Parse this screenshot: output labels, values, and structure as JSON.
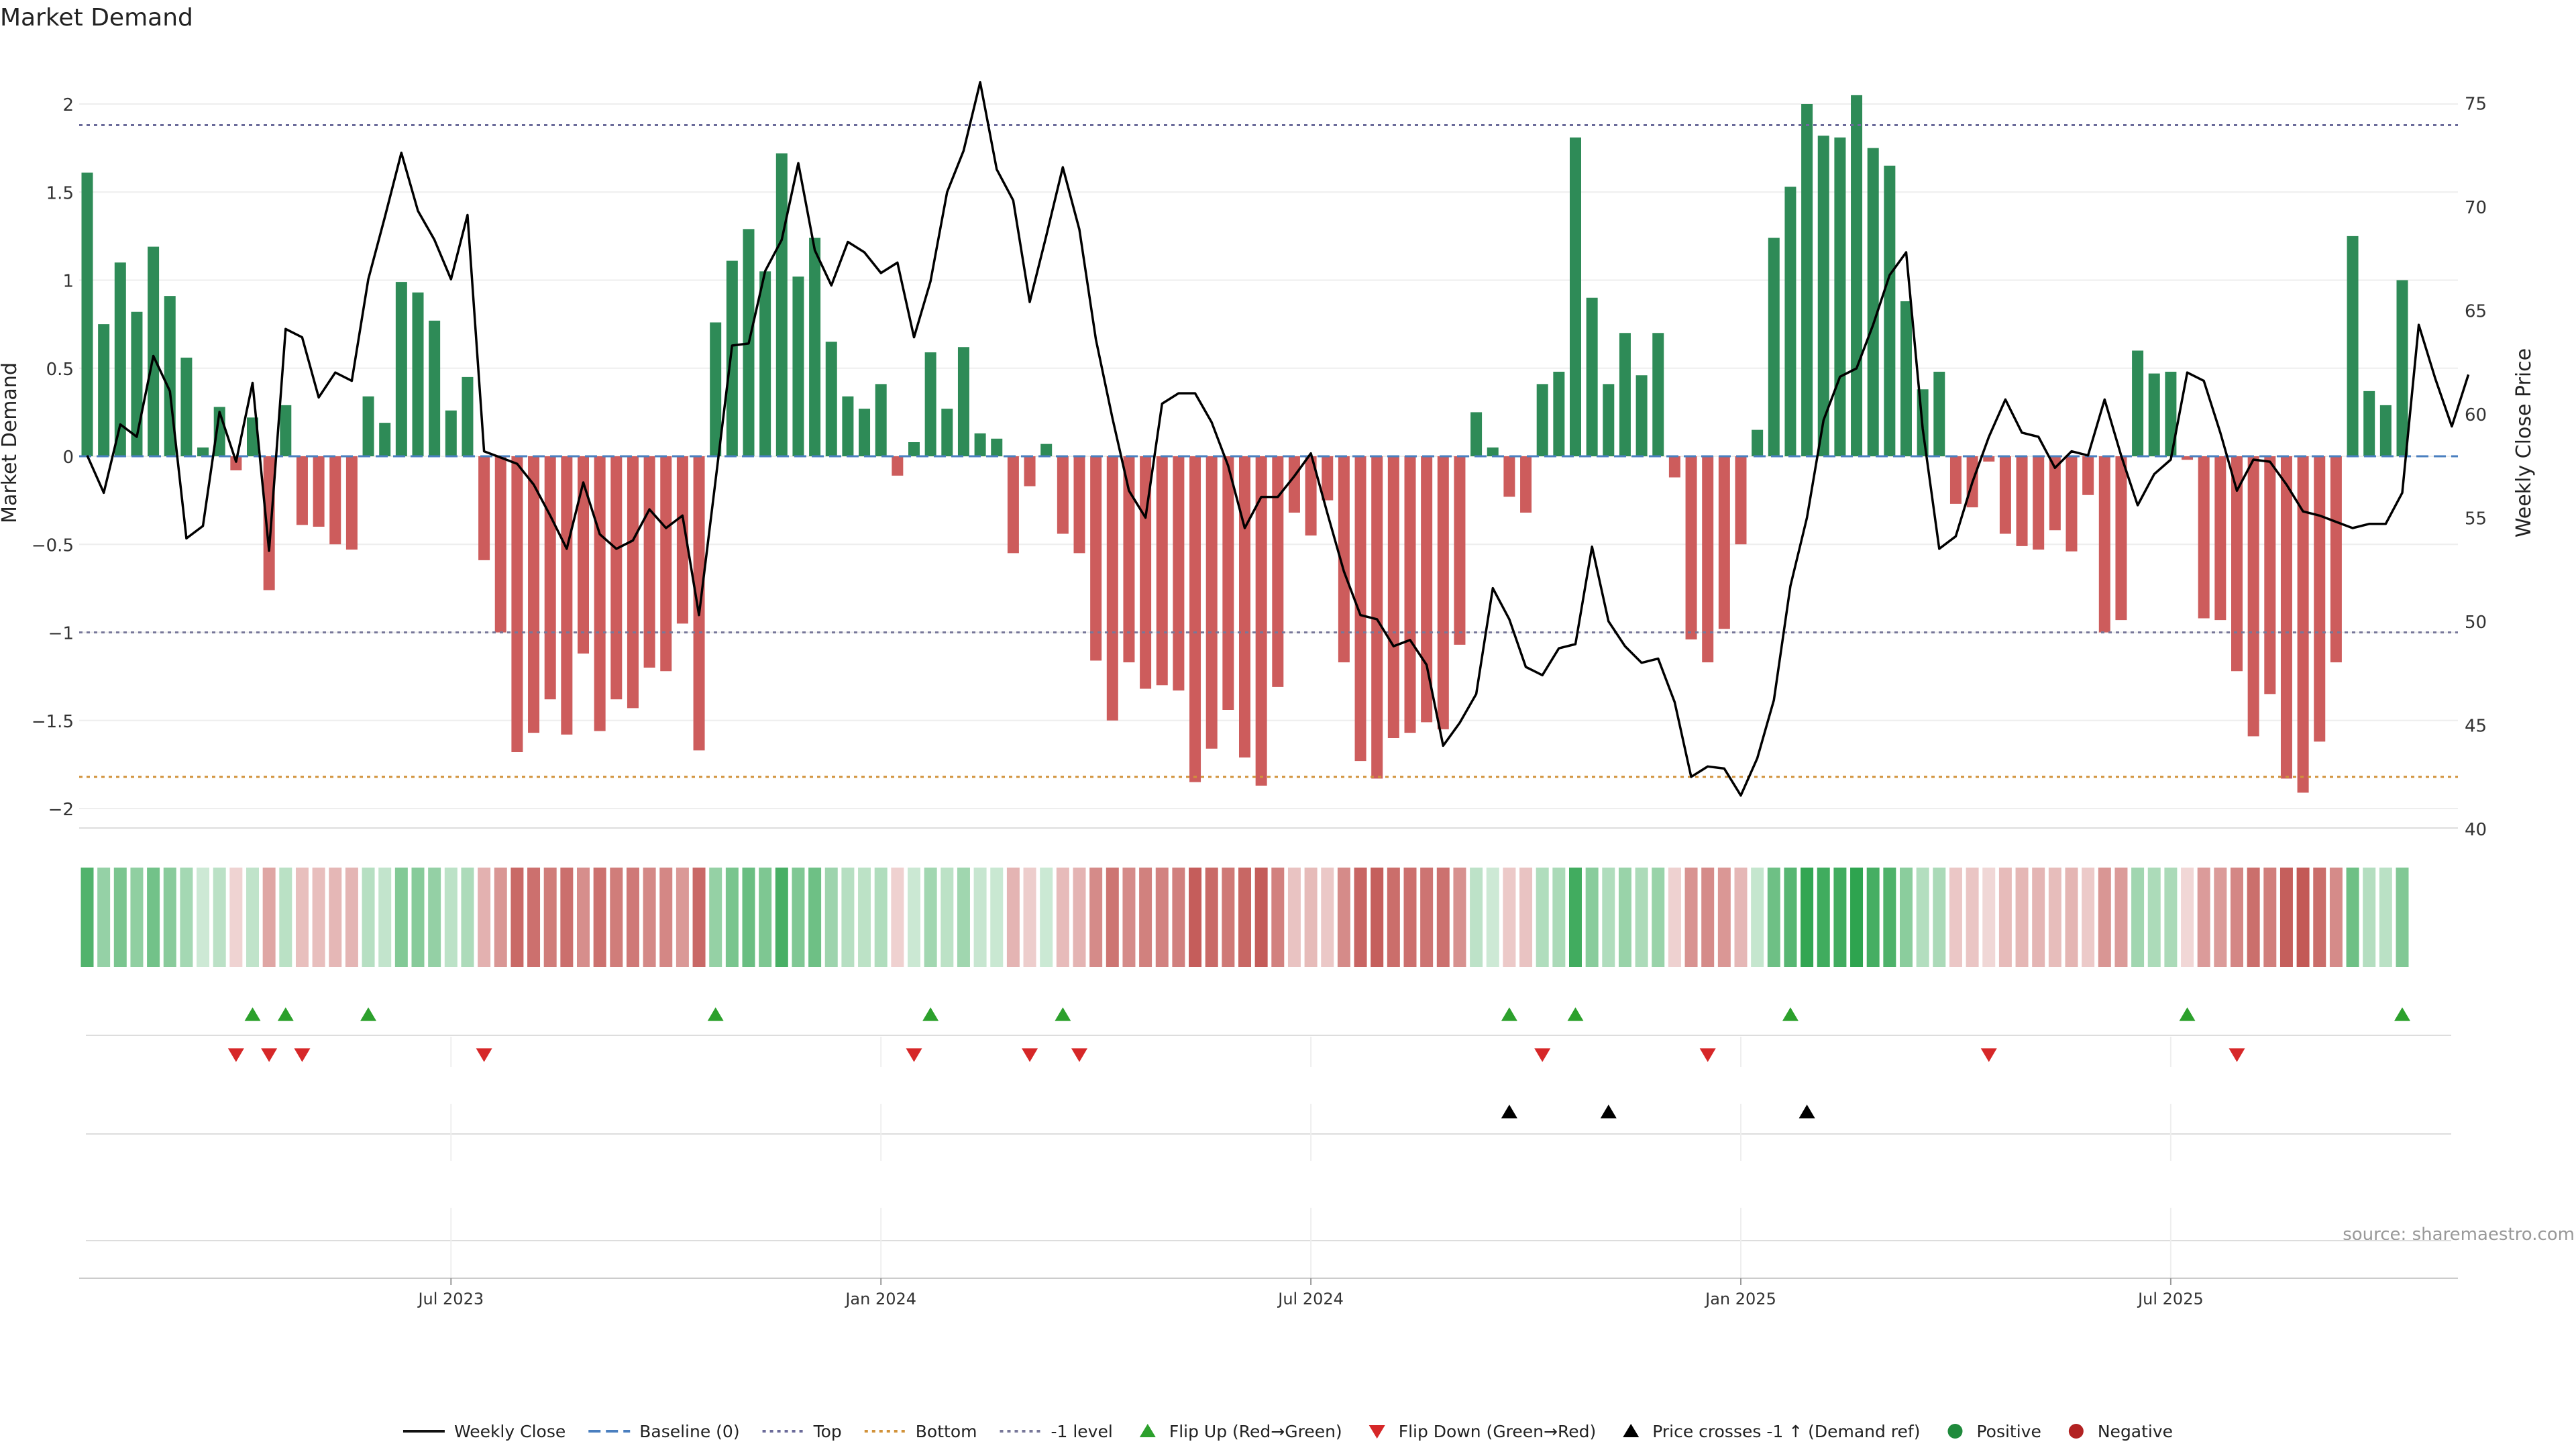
{
  "chart_data": {
    "type": "bar",
    "title": "Market Demand",
    "ylabel": "Market Demand",
    "y2label": "Weekly Close Price",
    "ylim": [
      -2.1,
      2.3
    ],
    "y2lim": [
      40,
      76
    ],
    "yticks": [
      {
        "v": 2,
        "label": "2"
      },
      {
        "v": 1.5,
        "label": "1.5"
      },
      {
        "v": 1,
        "label": "1"
      },
      {
        "v": 0.5,
        "label": "0.5"
      },
      {
        "v": 0,
        "label": "0"
      },
      {
        "v": -0.5,
        "label": "−0.5"
      },
      {
        "v": -1,
        "label": "−1"
      },
      {
        "v": -1.5,
        "label": "−1.5"
      },
      {
        "v": -2,
        "label": "−2"
      }
    ],
    "y2ticks": [
      {
        "v": 75,
        "label": "75"
      },
      {
        "v": 70,
        "label": "70"
      },
      {
        "v": 65,
        "label": "65"
      },
      {
        "v": 60,
        "label": "60"
      },
      {
        "v": 55,
        "label": "55"
      },
      {
        "v": 50,
        "label": "50"
      },
      {
        "v": 45,
        "label": "45"
      },
      {
        "v": 40,
        "label": "40"
      }
    ],
    "xticks": [
      {
        "week": 22,
        "label": "Jul 2023"
      },
      {
        "week": 48,
        "label": "Jan 2024"
      },
      {
        "week": 74,
        "label": "Jul 2024"
      },
      {
        "week": 100,
        "label": "Jan 2025"
      },
      {
        "week": 126,
        "label": "Jul 2025"
      }
    ],
    "levels": {
      "top": 1.88,
      "bottom": -1.82,
      "minus_one": -1.0,
      "baseline": 0
    },
    "demand": [
      1.61,
      0.75,
      1.1,
      0.82,
      1.19,
      0.91,
      0.56,
      0.05,
      0.28,
      -0.08,
      0.22,
      -0.76,
      0.29,
      -0.39,
      -0.4,
      -0.5,
      -0.53,
      0.34,
      0.19,
      0.99,
      0.93,
      0.77,
      0.26,
      0.45,
      -0.59,
      -1.0,
      -1.68,
      -1.57,
      -1.38,
      -1.58,
      -1.12,
      -1.56,
      -1.38,
      -1.43,
      -1.2,
      -1.22,
      -0.95,
      -1.67,
      0.76,
      1.11,
      1.29,
      1.05,
      1.72,
      1.02,
      1.24,
      0.65,
      0.34,
      0.27,
      0.41,
      -0.11,
      0.08,
      0.59,
      0.27,
      0.62,
      0.13,
      0.1,
      -0.55,
      -0.17,
      0.07,
      -0.44,
      -0.55,
      -1.16,
      -1.5,
      -1.17,
      -1.32,
      -1.3,
      -1.33,
      -1.85,
      -1.66,
      -1.44,
      -1.71,
      -1.87,
      -1.31,
      -0.32,
      -0.45,
      -0.25,
      -1.17,
      -1.73,
      -1.83,
      -1.6,
      -1.57,
      -1.51,
      -1.55,
      -1.07,
      0.25,
      0.05,
      -0.23,
      -0.32,
      0.41,
      0.48,
      1.81,
      0.9,
      0.41,
      0.7,
      0.46,
      0.7,
      -0.12,
      -1.04,
      -1.17,
      -0.98,
      -0.5,
      0.15,
      1.24,
      1.53,
      2.0,
      1.82,
      1.81,
      2.05,
      1.75,
      1.65,
      0.88,
      0.38,
      0.48,
      -0.27,
      -0.29,
      -0.03,
      -0.44,
      -0.51,
      -0.53,
      -0.42,
      -0.54,
      -0.22,
      -1.0,
      -0.93,
      0.6,
      0.47,
      0.48,
      -0.02,
      -0.92,
      -0.93,
      -1.22,
      -1.59,
      -1.35,
      -1.83,
      -1.91,
      -1.62,
      -1.17,
      1.25,
      0.37,
      0.29,
      1.0
    ],
    "weekly_close": [
      58,
      56.2,
      59.5,
      58.9,
      62.8,
      61.1,
      54,
      54.6,
      60.1,
      57.7,
      61.5,
      53.4,
      64.1,
      63.7,
      60.8,
      62,
      61.6,
      66.5,
      69.5,
      72.6,
      69.8,
      68.4,
      66.5,
      69.6,
      58.2,
      57.9,
      57.6,
      56.6,
      55.1,
      53.5,
      56.7,
      54.2,
      53.5,
      53.9,
      55.4,
      54.5,
      55.1,
      50.3,
      56.8,
      63.3,
      63.4,
      66.9,
      68.4,
      72.1,
      67.9,
      66.2,
      68.3,
      67.8,
      66.8,
      67.3,
      63.7,
      66.4,
      70.7,
      72.7,
      76,
      71.8,
      70.3,
      65.4,
      68.6,
      71.9,
      68.9,
      63.6,
      59.8,
      56.3,
      55,
      60.5,
      61,
      61,
      59.6,
      57.5,
      54.5,
      56,
      56,
      57,
      58.1,
      55.2,
      52.4,
      50.3,
      50.1,
      48.8,
      49.1,
      47.9,
      44,
      45.1,
      46.5,
      51.6,
      50.1,
      47.8,
      47.4,
      48.7,
      48.9,
      53.6,
      50,
      48.8,
      48,
      48.2,
      46.1,
      42.5,
      43,
      42.9,
      41.6,
      43.4,
      46.2,
      51.7,
      55,
      59.7,
      61.8,
      62.2,
      64.3,
      66.7,
      67.8,
      59.3,
      53.5,
      54.1,
      56.7,
      58.9,
      60.7,
      59.1,
      58.9,
      57.4,
      58.2,
      58,
      60.7,
      58,
      55.6,
      57.1,
      57.8,
      62,
      61.6,
      59.1,
      56.3,
      57.8,
      57.7,
      56.6,
      55.3,
      55.1,
      54.8,
      54.5,
      54.7,
      54.7,
      56.2,
      64.3,
      61.7,
      59.4,
      61.9
    ],
    "flip_up": [
      10,
      12,
      17,
      38,
      51,
      59,
      86,
      90,
      103,
      127,
      140
    ],
    "flip_down": [
      9,
      11,
      13,
      24,
      50,
      57,
      60,
      88,
      98,
      115,
      130
    ],
    "price_cross": [
      86,
      92,
      104
    ],
    "source": "source: sharemaestro.com",
    "legend": [
      {
        "type": "line",
        "label": "Weekly Close",
        "color": "#111111",
        "dash": ""
      },
      {
        "type": "line",
        "label": "Baseline (0)",
        "color": "#4a7fbf",
        "dash": "18,8"
      },
      {
        "type": "line",
        "label": "Top",
        "color": "#6b6b9a",
        "dash": "5,6"
      },
      {
        "type": "line",
        "label": "Bottom",
        "color": "#d1923a",
        "dash": "5,6"
      },
      {
        "type": "line",
        "label": "-1 level",
        "color": "#777799",
        "dash": "5,6"
      },
      {
        "type": "tri-up",
        "label": "Flip Up (Red→Green)",
        "color": "#2ca02c"
      },
      {
        "type": "tri-down",
        "label": "Flip Down (Green→Red)",
        "color": "#d62728"
      },
      {
        "type": "tri-up",
        "label": "Price crosses -1 ↑ (Demand ref)",
        "color": "#000000"
      },
      {
        "type": "dot",
        "label": "Positive",
        "color": "#1f8a3c"
      },
      {
        "type": "dot",
        "label": "Negative",
        "color": "#b22222"
      }
    ],
    "colors": {
      "positive": "#2e8b57",
      "negative": "#cd5c5c",
      "price": "#000000",
      "top": "#6b6b9a",
      "bottom": "#d1923a",
      "minus_one": "#777799",
      "baseline": "#4a7fbf",
      "flip_up": "#2ca02c",
      "flip_down": "#d62728",
      "cross": "#000000"
    }
  }
}
